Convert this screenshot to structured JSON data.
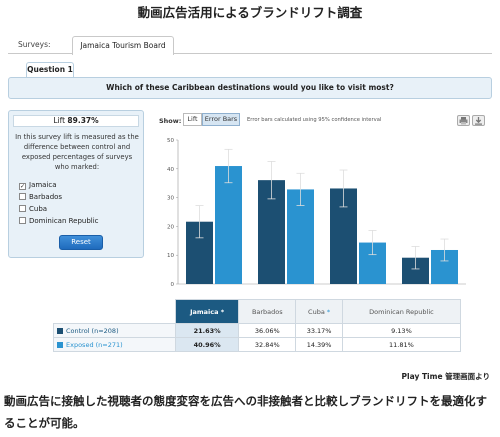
{
  "page_title": "動画広告活用によるブランドリフト調査",
  "tabbar": {
    "surveys_label": "Surveys:",
    "survey_tab": "Jamaica Tourism Board"
  },
  "question": {
    "tab_label": "Question 1",
    "text": "Which of these Caribbean destinations would you like to visit most?"
  },
  "lift_panel": {
    "lift_label": "Lift",
    "lift_value": "89.37%",
    "description": "In this survey lift is measured as the difference between control and exposed percentages of surveys who marked:",
    "options": [
      {
        "label": "Jamaica",
        "checked": true
      },
      {
        "label": "Barbados",
        "checked": false
      },
      {
        "label": "Cuba",
        "checked": false
      },
      {
        "label": "Dominican Republic",
        "checked": false
      }
    ],
    "reset_label": "Reset"
  },
  "show_controls": {
    "show_label": "Show:",
    "lift_button": "Lift",
    "error_bars_button": "Error Bars",
    "note": "Error bars calculated using 95% confidence interval",
    "icons": [
      "print-icon",
      "download-icon"
    ]
  },
  "colors": {
    "control": "#1c4f72",
    "exposed": "#2a93d0",
    "accent": "#1c5a82"
  },
  "chart_data": {
    "type": "bar",
    "categories": [
      "Jamaica",
      "Barbados",
      "Cuba",
      "Dominican Republic"
    ],
    "series": [
      {
        "name": "Control (n=208)",
        "values": [
          21.63,
          36.06,
          33.17,
          9.13
        ],
        "err": [
          5.6,
          6.5,
          6.4,
          3.9
        ]
      },
      {
        "name": "Exposed (n=271)",
        "values": [
          40.96,
          32.84,
          14.39,
          11.81
        ],
        "err": [
          5.8,
          5.6,
          4.2,
          3.8
        ]
      }
    ],
    "ylim": [
      0,
      50
    ],
    "yticks": [
      "0",
      "10",
      "20",
      "30",
      "40",
      "50"
    ],
    "grid": false
  },
  "table": {
    "headers": [
      {
        "label": "Jamaica",
        "marker": "*",
        "selected": true
      },
      {
        "label": "Barbados",
        "marker": "",
        "selected": false
      },
      {
        "label": "Cuba",
        "marker": "*",
        "selected": false
      },
      {
        "label": "Dominican Republic",
        "marker": "",
        "selected": false
      }
    ],
    "rows": [
      {
        "label": "Control (n=208)",
        "cells": [
          "21.63%",
          "36.06%",
          "33.17%",
          "9.13%"
        ]
      },
      {
        "label": "Exposed (n=271)",
        "cells": [
          "40.96%",
          "32.84%",
          "14.39%",
          "11.81%"
        ]
      }
    ]
  },
  "source_label": "Play Time 管理画面より",
  "caption": "動画広告に接触した視聴者の態度変容を広告への非接触者と比較しブランドリフトを最適化することが可能。"
}
